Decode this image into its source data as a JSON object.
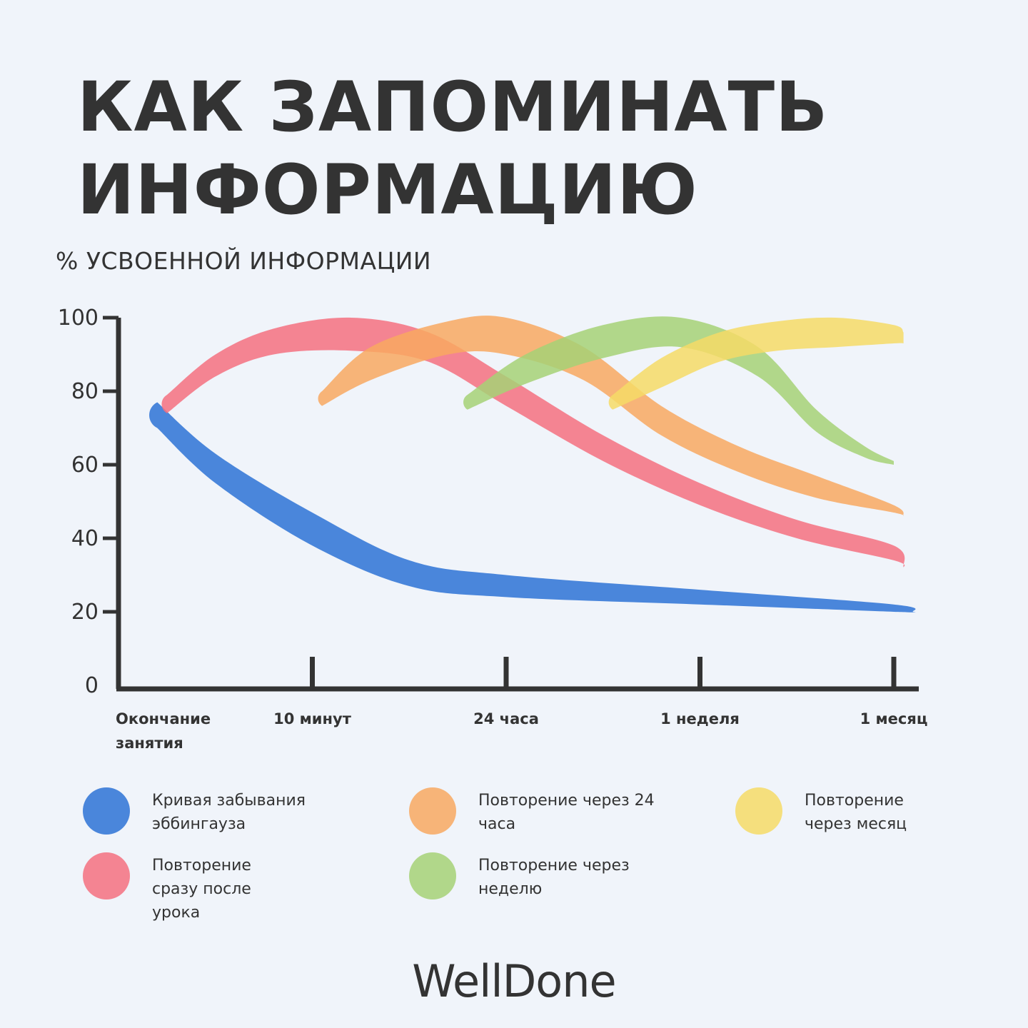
{
  "title": {
    "line1": "КАК ЗАПОМИНАТЬ",
    "line2": "ИНФОРМАЦИЮ"
  },
  "brand": "WellDone",
  "chart_data": {
    "type": "area",
    "ylabel": "% УСВОЕННОЙ ИНФОРМАЦИИ",
    "ylim": [
      0,
      100
    ],
    "yticks": [
      "100",
      "80",
      "60",
      "40",
      "20",
      "0"
    ],
    "x_categories": [
      "Окончание занятия",
      "10 минут",
      "24 часа",
      "1 неделя",
      "1 месяц"
    ],
    "legend_placement": "bottom",
    "series": [
      {
        "name": "Кривая забывания эббингауза",
        "color": "#4a86db",
        "opacity": 1,
        "x": [
          0.2,
          0.5,
          1.0,
          1.5,
          2.0,
          3.0,
          4.0,
          4.1
        ],
        "upper": [
          77,
          63,
          47,
          34,
          30,
          26,
          22,
          20
        ],
        "lower": [
          70,
          55,
          38,
          27,
          24,
          22,
          20,
          20
        ]
      },
      {
        "name": "Повторение сразу после урока",
        "color": "#f5707f",
        "opacity": 0.85,
        "x": [
          0.25,
          0.5,
          0.8,
          1.2,
          1.6,
          2.0,
          2.5,
          3.0,
          3.5,
          4.0,
          4.05
        ],
        "upper": [
          79,
          90,
          97,
          100,
          96,
          84,
          68,
          55,
          45,
          38,
          32
        ],
        "lower": [
          74,
          84,
          90,
          91,
          88,
          76,
          61,
          49,
          40,
          34,
          32
        ]
      },
      {
        "name": "Повторение через 24 часа",
        "color": "#f8a860",
        "opacity": 0.85,
        "x": [
          1.05,
          1.3,
          1.7,
          2.0,
          2.4,
          2.8,
          3.2,
          3.6,
          4.0,
          4.05
        ],
        "upper": [
          80,
          92,
          99,
          100,
          92,
          76,
          65,
          57,
          49,
          46
        ],
        "lower": [
          76,
          83,
          90,
          90,
          83,
          68,
          58,
          51,
          47,
          46
        ]
      },
      {
        "name": "Повторение через неделю",
        "color": "#a6d176",
        "opacity": 0.85,
        "x": [
          1.8,
          2.1,
          2.5,
          2.9,
          3.3,
          3.6,
          3.85,
          4.0
        ],
        "upper": [
          79,
          90,
          98,
          100,
          92,
          75,
          65,
          61
        ],
        "lower": [
          75,
          82,
          89,
          92,
          84,
          69,
          62,
          60
        ]
      },
      {
        "name": "Повторение через месяц",
        "color": "#f6db66",
        "opacity": 0.85,
        "x": [
          2.55,
          2.8,
          3.1,
          3.4,
          3.7,
          4.0,
          4.05
        ],
        "upper": [
          79,
          89,
          96,
          99,
          100,
          98,
          96
        ],
        "lower": [
          75,
          81,
          88,
          91,
          92,
          93,
          93
        ]
      }
    ]
  }
}
